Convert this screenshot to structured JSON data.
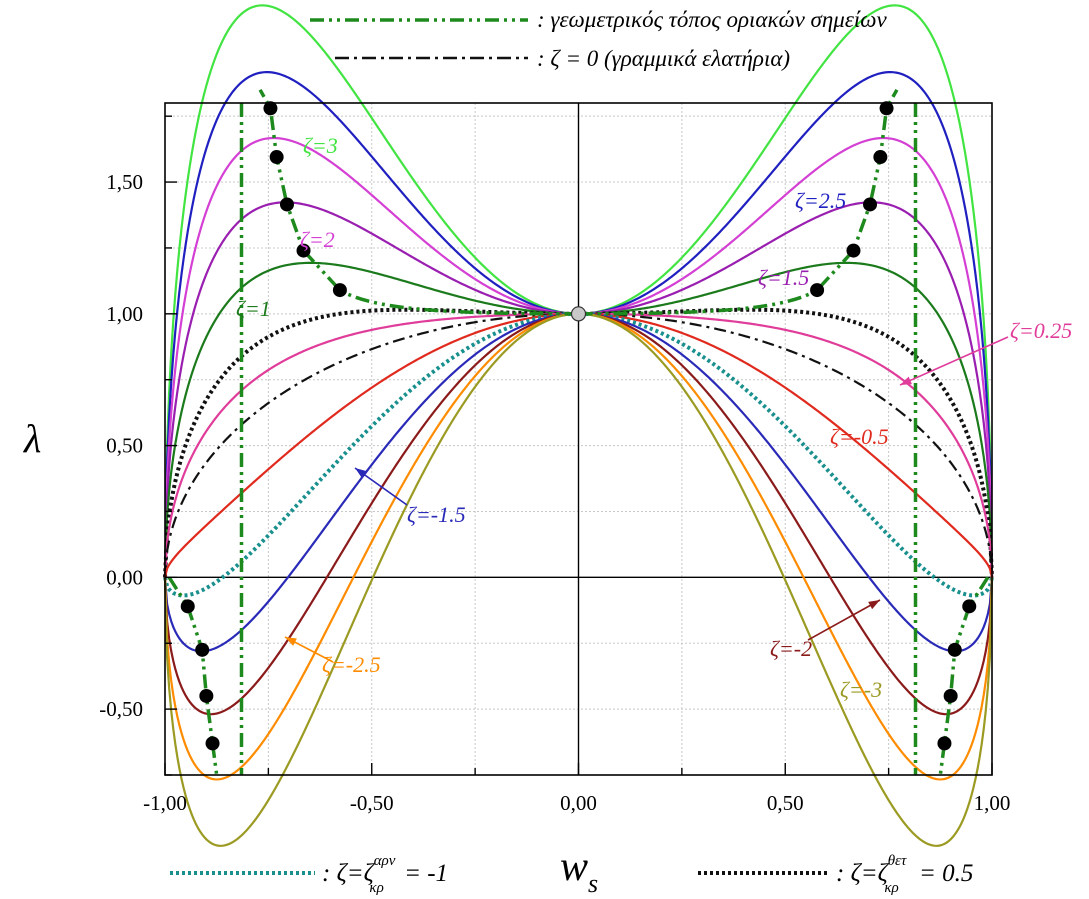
{
  "chart_data": {
    "type": "line",
    "xlabel": "w",
    "xlabel_sub": "s",
    "ylabel": "λ",
    "xlim": [
      -1.0,
      1.0
    ],
    "ylim": [
      -0.75,
      1.8
    ],
    "xticks": [
      -1.0,
      -0.5,
      0.0,
      0.5,
      1.0
    ],
    "xtick_labels": [
      "-1,00",
      "-0,50",
      "0,00",
      "0,50",
      "1,00"
    ],
    "yticks": [
      -0.5,
      0.0,
      0.5,
      1.0,
      1.5
    ],
    "ytick_labels": [
      "-0,50",
      "0,00",
      "0,50",
      "1,00",
      "1,50"
    ],
    "grid": true,
    "legend_top": [
      {
        "label": ": γεωμετρικός τόπος οριακών σημείων",
        "style": "dash-dot-dot",
        "color": "#1e8a1e"
      },
      {
        "label": ": ζ = 0 (γραμμικά ελατήρια)",
        "style": "dash-dot",
        "color": "#111111"
      }
    ],
    "legend_bottom": [
      {
        "prefix": ": ζ=ζ",
        "sub": "κρ",
        "sup": "αρν",
        "suffix": " = -1",
        "style": "dotted",
        "color": "#19908e"
      },
      {
        "prefix": ": ζ=ζ",
        "sub": "κρ",
        "sup": "θετ",
        "suffix": " = 0.5",
        "style": "dotted",
        "color": "#111111"
      }
    ],
    "series": [
      {
        "zeta": 3,
        "color": "#41e441",
        "style": "solid"
      },
      {
        "zeta": 2.5,
        "color": "#2020c0",
        "style": "solid"
      },
      {
        "zeta": 2,
        "color": "#d43fd4",
        "style": "solid"
      },
      {
        "zeta": 1.5,
        "color": "#9a1fb0",
        "style": "solid"
      },
      {
        "zeta": 1,
        "color": "#1b7a1b",
        "style": "solid"
      },
      {
        "zeta": 0.5,
        "color": "#111111",
        "style": "dotted"
      },
      {
        "zeta": 0.25,
        "color": "#e03c9a",
        "style": "solid"
      },
      {
        "zeta": 0,
        "color": "#111111",
        "style": "dashdot"
      },
      {
        "zeta": -0.5,
        "color": "#e02a1e",
        "style": "solid"
      },
      {
        "zeta": -1,
        "color": "#19908e",
        "style": "dotted"
      },
      {
        "zeta": -1.5,
        "color": "#2a2ab8",
        "style": "solid"
      },
      {
        "zeta": -2,
        "color": "#8b1a1a",
        "style": "solid"
      },
      {
        "zeta": -2.5,
        "color": "#ff8c00",
        "style": "solid"
      },
      {
        "zeta": -3,
        "color": "#9b9a22",
        "style": "solid"
      }
    ],
    "limit_points": [
      {
        "zeta": 3,
        "w": 0.745,
        "lambda": 1.78
      },
      {
        "zeta": 2.5,
        "w": 0.73,
        "lambda": 1.595
      },
      {
        "zeta": 2,
        "w": 0.705,
        "lambda": 1.415
      },
      {
        "zeta": 1.5,
        "w": 0.665,
        "lambda": 1.24
      },
      {
        "zeta": 1,
        "w": 0.577,
        "lambda": 1.09
      },
      {
        "zeta": -1.5,
        "w": 0.945,
        "lambda": -0.11
      },
      {
        "zeta": -2,
        "w": 0.91,
        "lambda": -0.275
      },
      {
        "zeta": -2.5,
        "w": 0.9,
        "lambda": -0.45
      },
      {
        "zeta": -3,
        "w": 0.885,
        "lambda": -0.63
      }
    ],
    "limit_locus_asymptote_w": 0.815,
    "center_point": {
      "w": 0.0,
      "lambda": 1.0
    },
    "annotations": [
      {
        "text": "ζ=3",
        "color": "#41e441"
      },
      {
        "text": "ζ=2.5",
        "color": "#2020c0"
      },
      {
        "text": "ζ=2",
        "color": "#d43fd4"
      },
      {
        "text": "ζ=1.5",
        "color": "#9a1fb0"
      },
      {
        "text": "ζ=1",
        "color": "#1b7a1b"
      },
      {
        "text": "ζ=0.25",
        "color": "#e03c9a"
      },
      {
        "text": "ζ=-0.5",
        "color": "#e02a1e"
      },
      {
        "text": "ζ=-1.5",
        "color": "#2a2ab8"
      },
      {
        "text": "ζ=-2",
        "color": "#8b1a1a"
      },
      {
        "text": "ζ=-2.5",
        "color": "#ff8c00"
      },
      {
        "text": "ζ=-3",
        "color": "#9b9a22"
      }
    ]
  }
}
